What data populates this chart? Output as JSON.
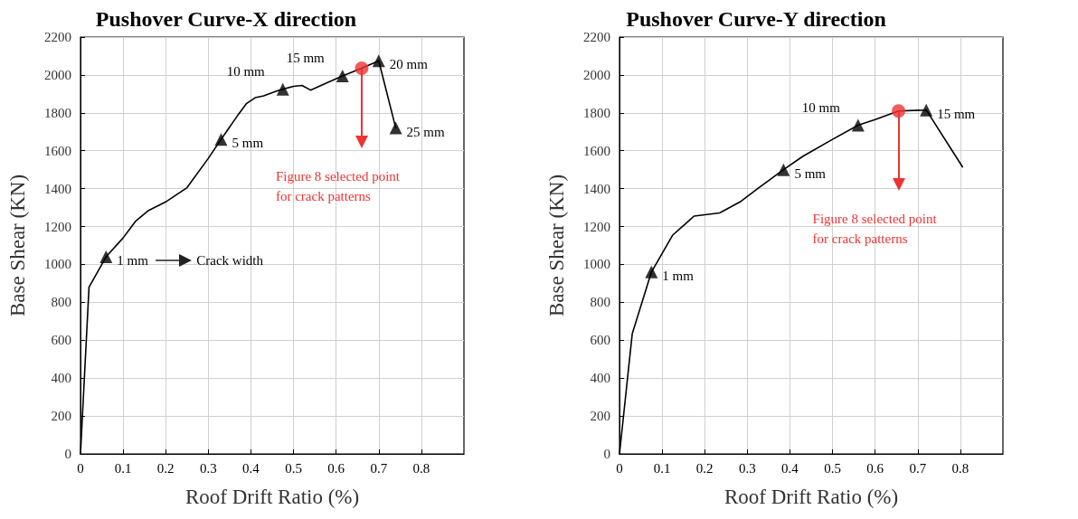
{
  "chart_data": [
    {
      "type": "line",
      "title": "Pushover Curve-X direction",
      "xlabel": "Roof Drift Ratio (%)",
      "ylabel": "Base Shear (KN)",
      "xlim": [
        0,
        0.9
      ],
      "xticks": [
        0,
        0.1,
        0.2,
        0.3,
        0.4,
        0.5,
        0.6,
        0.7,
        0.8
      ],
      "ylim": [
        0,
        2200
      ],
      "yticks": [
        0,
        200,
        400,
        600,
        800,
        1000,
        1200,
        1400,
        1600,
        1800,
        2000,
        2200
      ],
      "grid": true,
      "series": [
        {
          "color": "#000000",
          "marker": "none",
          "x": [
            0,
            0.02,
            0.06,
            0.1,
            0.13,
            0.16,
            0.2,
            0.23,
            0.25,
            0.3,
            0.33,
            0.37,
            0.39,
            0.41,
            0.43,
            0.46,
            0.475,
            0.5,
            0.52,
            0.54,
            0.58,
            0.615,
            0.66,
            0.7,
            0.74
          ],
          "values": [
            0,
            880,
            1040,
            1140,
            1230,
            1285,
            1330,
            1375,
            1405,
            1560,
            1660,
            1790,
            1850,
            1880,
            1890,
            1915,
            1925,
            1940,
            1945,
            1920,
            1960,
            1995,
            2035,
            2075,
            1720
          ]
        },
        {
          "type": "scatter",
          "color": "#000000",
          "marker": "triangle",
          "x": [
            0.06,
            0.33,
            0.475,
            0.615,
            0.7,
            0.74
          ],
          "values": [
            1040,
            1660,
            1925,
            1995,
            2075,
            1720
          ]
        },
        {
          "type": "scatter",
          "color": "#ee3333",
          "marker": "circle",
          "x": [
            0.66
          ],
          "values": [
            2035
          ]
        }
      ],
      "annotations": [
        {
          "text": "1 mm",
          "x": 0.06,
          "y": 1040
        },
        {
          "text": "5 mm",
          "x": 0.33,
          "y": 1660
        },
        {
          "text": "10 mm",
          "x": 0.475,
          "y": 1925
        },
        {
          "text": "15 mm",
          "x": 0.615,
          "y": 1995
        },
        {
          "text": "20 mm",
          "x": 0.7,
          "y": 2075
        },
        {
          "text": "25 mm",
          "x": 0.74,
          "y": 1720
        },
        "Crack width",
        "Figure 8 selected point\nfor crack patterns"
      ]
    },
    {
      "type": "line",
      "title": "Pushover Curve-Y direction",
      "xlabel": "Roof Drift Ratio (%)",
      "ylabel": "Base Shear (KN)",
      "xlim": [
        0,
        0.9
      ],
      "xticks": [
        0,
        0.1,
        0.2,
        0.3,
        0.4,
        0.5,
        0.6,
        0.7,
        0.8
      ],
      "ylim": [
        0,
        2200
      ],
      "yticks": [
        0,
        200,
        400,
        600,
        800,
        1000,
        1200,
        1400,
        1600,
        1800,
        2000,
        2200
      ],
      "grid": true,
      "series": [
        {
          "color": "#000000",
          "marker": "none",
          "x": [
            0,
            0.03,
            0.075,
            0.125,
            0.175,
            0.235,
            0.285,
            0.33,
            0.385,
            0.43,
            0.5,
            0.56,
            0.6,
            0.655,
            0.72,
            0.805
          ],
          "values": [
            0,
            635,
            960,
            1155,
            1255,
            1272,
            1333,
            1410,
            1500,
            1570,
            1660,
            1735,
            1765,
            1810,
            1815,
            1515
          ]
        },
        {
          "type": "scatter",
          "color": "#000000",
          "marker": "triangle",
          "x": [
            0.075,
            0.385,
            0.56,
            0.72
          ],
          "values": [
            960,
            1500,
            1735,
            1815
          ]
        },
        {
          "type": "scatter",
          "color": "#ee3333",
          "marker": "circle",
          "x": [
            0.655
          ],
          "values": [
            1810
          ]
        }
      ],
      "annotations": [
        {
          "text": "1 mm",
          "x": 0.075,
          "y": 960
        },
        {
          "text": "5 mm",
          "x": 0.385,
          "y": 1500
        },
        {
          "text": "10 mm",
          "x": 0.56,
          "y": 1735
        },
        {
          "text": "15 mm",
          "x": 0.72,
          "y": 1815
        },
        "Figure 8 selected point\nfor crack patterns"
      ]
    }
  ]
}
